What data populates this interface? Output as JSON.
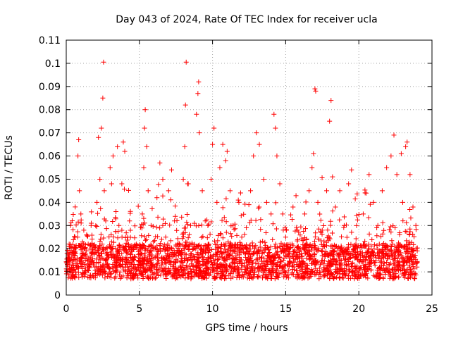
{
  "chart_data": {
    "type": "scatter",
    "title": "Day 043 of 2024, Rate Of TEC Index for receiver ucla",
    "xlabel": "GPS time / hours",
    "ylabel": "ROTI / TECUs",
    "xlim": [
      0,
      25
    ],
    "ylim": [
      0,
      0.11
    ],
    "x_ticks": [
      "0",
      "5",
      "10",
      "15",
      "20",
      "25"
    ],
    "y_ticks": [
      "0",
      "0.01",
      "0.02",
      "0.03",
      "0.04",
      "0.05",
      "0.06",
      "0.07",
      "0.08",
      "0.09",
      "0.1",
      "0.11"
    ],
    "grid": true,
    "legend": "none",
    "marker": "plus",
    "color": "#ff0000",
    "series": [
      {
        "points": [
          [
            0.1,
            0.014
          ],
          [
            0.2,
            0.022
          ],
          [
            0.3,
            0.03
          ],
          [
            0.4,
            0.01
          ],
          [
            0.5,
            0.018
          ],
          [
            0.6,
            0.025
          ],
          [
            0.7,
            0.012
          ],
          [
            0.8,
            0.06
          ],
          [
            0.85,
            0.067
          ],
          [
            0.9,
            0.045
          ],
          [
            1.0,
            0.035
          ],
          [
            1.1,
            0.02
          ],
          [
            1.2,
            0.028
          ],
          [
            1.3,
            0.015
          ],
          [
            1.5,
            0.022
          ],
          [
            1.7,
            0.03
          ],
          [
            1.9,
            0.014
          ],
          [
            2.1,
            0.04
          ],
          [
            2.2,
            0.068
          ],
          [
            2.3,
            0.05
          ],
          [
            2.4,
            0.072
          ],
          [
            2.5,
            0.085
          ],
          [
            2.55,
            0.1005
          ],
          [
            2.6,
            0.045
          ],
          [
            2.7,
            0.032
          ],
          [
            2.8,
            0.02
          ],
          [
            3.0,
            0.055
          ],
          [
            3.1,
            0.048
          ],
          [
            3.2,
            0.06
          ],
          [
            3.4,
            0.036
          ],
          [
            3.5,
            0.064
          ],
          [
            3.6,
            0.03
          ],
          [
            3.8,
            0.048
          ],
          [
            3.9,
            0.066
          ],
          [
            4.0,
            0.062
          ],
          [
            4.2,
            0.025
          ],
          [
            4.4,
            0.016
          ],
          [
            4.6,
            0.012
          ],
          [
            4.8,
            0.022
          ],
          [
            5.0,
            0.018
          ],
          [
            5.2,
            0.035
          ],
          [
            5.3,
            0.055
          ],
          [
            5.35,
            0.072
          ],
          [
            5.4,
            0.08
          ],
          [
            5.5,
            0.064
          ],
          [
            5.6,
            0.045
          ],
          [
            5.8,
            0.03
          ],
          [
            6.0,
            0.02
          ],
          [
            6.2,
            0.042
          ],
          [
            6.4,
            0.057
          ],
          [
            6.6,
            0.05
          ],
          [
            6.8,
            0.025
          ],
          [
            7.0,
            0.045
          ],
          [
            7.2,
            0.054
          ],
          [
            7.4,
            0.032
          ],
          [
            7.6,
            0.022
          ],
          [
            7.8,
            0.018
          ],
          [
            8.0,
            0.05
          ],
          [
            8.1,
            0.064
          ],
          [
            8.15,
            0.082
          ],
          [
            8.2,
            0.1005
          ],
          [
            8.3,
            0.048
          ],
          [
            8.5,
            0.03
          ],
          [
            8.7,
            0.02
          ],
          [
            8.9,
            0.078
          ],
          [
            9.0,
            0.087
          ],
          [
            9.05,
            0.092
          ],
          [
            9.1,
            0.07
          ],
          [
            9.3,
            0.045
          ],
          [
            9.5,
            0.032
          ],
          [
            9.7,
            0.022
          ],
          [
            9.9,
            0.05
          ],
          [
            10.0,
            0.065
          ],
          [
            10.1,
            0.072
          ],
          [
            10.3,
            0.04
          ],
          [
            10.5,
            0.055
          ],
          [
            10.7,
            0.065
          ],
          [
            10.9,
            0.058
          ],
          [
            11.0,
            0.062
          ],
          [
            11.2,
            0.045
          ],
          [
            11.4,
            0.03
          ],
          [
            11.6,
            0.02
          ],
          [
            11.8,
            0.04
          ],
          [
            12.0,
            0.025
          ],
          [
            12.3,
            0.015
          ],
          [
            12.6,
            0.045
          ],
          [
            12.8,
            0.06
          ],
          [
            13.0,
            0.07
          ],
          [
            13.2,
            0.065
          ],
          [
            13.5,
            0.05
          ],
          [
            13.7,
            0.04
          ],
          [
            14.0,
            0.035
          ],
          [
            14.2,
            0.078
          ],
          [
            14.3,
            0.072
          ],
          [
            14.4,
            0.06
          ],
          [
            14.6,
            0.048
          ],
          [
            14.8,
            0.035
          ],
          [
            15.0,
            0.025
          ],
          [
            15.2,
            0.018
          ],
          [
            15.5,
            0.038
          ],
          [
            15.8,
            0.028
          ],
          [
            16.0,
            0.02
          ],
          [
            16.3,
            0.035
          ],
          [
            16.6,
            0.045
          ],
          [
            16.8,
            0.055
          ],
          [
            16.9,
            0.061
          ],
          [
            17.0,
            0.089
          ],
          [
            17.05,
            0.088
          ],
          [
            17.2,
            0.04
          ],
          [
            17.5,
            0.028
          ],
          [
            17.8,
            0.045
          ],
          [
            18.0,
            0.075
          ],
          [
            18.1,
            0.084
          ],
          [
            18.2,
            0.051
          ],
          [
            18.4,
            0.038
          ],
          [
            18.7,
            0.045
          ],
          [
            19.0,
            0.03
          ],
          [
            19.3,
            0.048
          ],
          [
            19.5,
            0.054
          ],
          [
            19.8,
            0.022
          ],
          [
            20.0,
            0.015
          ],
          [
            20.3,
            0.035
          ],
          [
            20.5,
            0.044
          ],
          [
            20.7,
            0.052
          ],
          [
            21.0,
            0.04
          ],
          [
            21.3,
            0.03
          ],
          [
            21.6,
            0.045
          ],
          [
            21.9,
            0.055
          ],
          [
            22.2,
            0.06
          ],
          [
            22.4,
            0.069
          ],
          [
            22.6,
            0.052
          ],
          [
            22.9,
            0.061
          ],
          [
            23.0,
            0.04
          ],
          [
            23.2,
            0.064
          ],
          [
            23.3,
            0.066
          ],
          [
            23.5,
            0.052
          ],
          [
            23.7,
            0.038
          ],
          [
            23.9,
            0.03
          ]
        ]
      }
    ],
    "dense_band": {
      "x_range": [
        0,
        24
      ],
      "y_min": 0.007,
      "y_max": 0.022,
      "description_note": ""
    }
  }
}
